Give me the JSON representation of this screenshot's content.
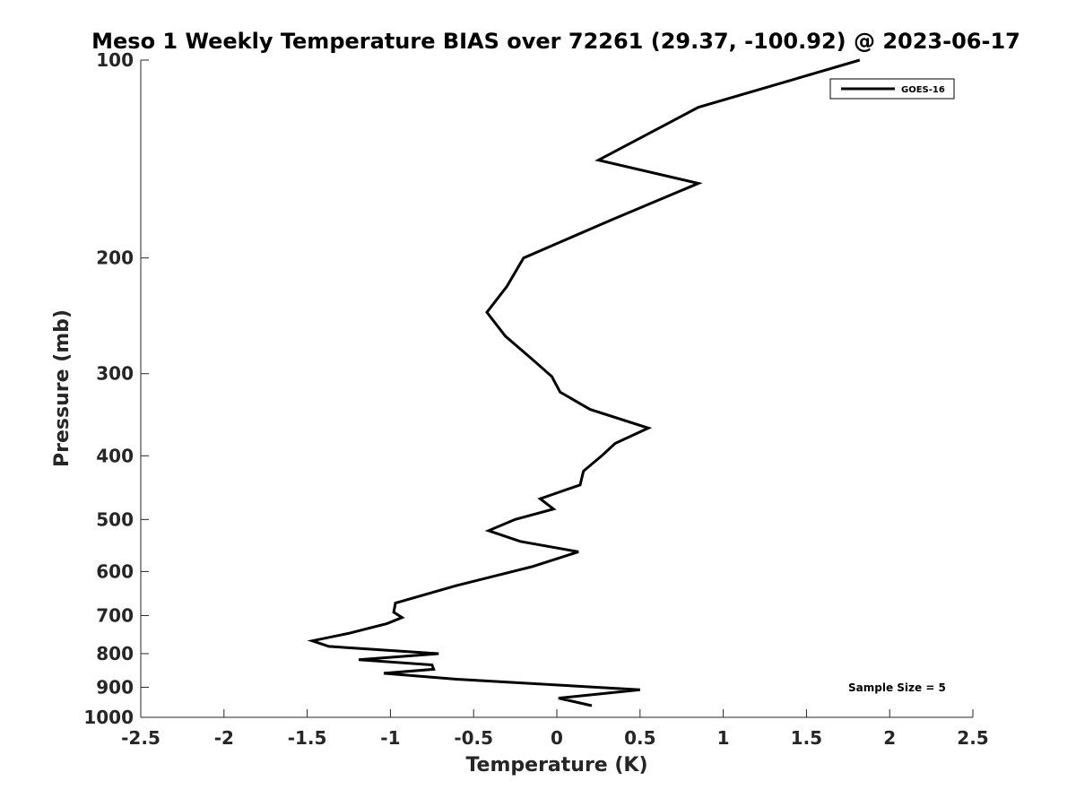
{
  "chart_data": {
    "type": "line",
    "title": "Meso 1 Weekly Temperature BIAS over 72261 (29.37, -100.92) @ 2023-06-17",
    "xlabel": "Temperature (K)",
    "ylabel": "Pressure (mb)",
    "xlim": [
      -2.5,
      2.5
    ],
    "ylim": [
      100,
      1000
    ],
    "yscale": "log",
    "yreverse": false,
    "xticks": [
      -2.5,
      -2,
      -1.5,
      -1,
      -0.5,
      0,
      0.5,
      1,
      1.5,
      2,
      2.5
    ],
    "xtick_labels": [
      "-2.5",
      "-2",
      "-1.5",
      "-1",
      "-0.5",
      "0",
      "0.5",
      "1",
      "1.5",
      "2",
      "2.5"
    ],
    "yticks": [
      100,
      200,
      300,
      400,
      500,
      600,
      700,
      800,
      900,
      1000
    ],
    "ytick_labels": [
      "100",
      "200",
      "300",
      "400",
      "500",
      "600",
      "700",
      "800",
      "900",
      "1000"
    ],
    "grid": false,
    "legend_position": "top-right",
    "annotation": "Sample Size = 5",
    "series": [
      {
        "name": "GOES-16",
        "color": "#000000",
        "points": [
          {
            "x": 1.82,
            "p": 100
          },
          {
            "x": 0.85,
            "p": 118
          },
          {
            "x": 0.25,
            "p": 142
          },
          {
            "x": 0.85,
            "p": 154
          },
          {
            "x": 0.33,
            "p": 175
          },
          {
            "x": -0.2,
            "p": 200
          },
          {
            "x": -0.3,
            "p": 221
          },
          {
            "x": -0.42,
            "p": 242
          },
          {
            "x": -0.31,
            "p": 263
          },
          {
            "x": -0.15,
            "p": 285
          },
          {
            "x": -0.03,
            "p": 303
          },
          {
            "x": 0.02,
            "p": 320
          },
          {
            "x": 0.2,
            "p": 340
          },
          {
            "x": 0.55,
            "p": 363
          },
          {
            "x": 0.35,
            "p": 383
          },
          {
            "x": 0.27,
            "p": 400
          },
          {
            "x": 0.16,
            "p": 422
          },
          {
            "x": 0.14,
            "p": 443
          },
          {
            "x": -0.1,
            "p": 465
          },
          {
            "x": -0.02,
            "p": 482
          },
          {
            "x": -0.25,
            "p": 500
          },
          {
            "x": -0.41,
            "p": 520
          },
          {
            "x": -0.22,
            "p": 540
          },
          {
            "x": 0.13,
            "p": 560
          },
          {
            "x": -0.15,
            "p": 590
          },
          {
            "x": -0.6,
            "p": 630
          },
          {
            "x": -0.97,
            "p": 670
          },
          {
            "x": -0.98,
            "p": 692
          },
          {
            "x": -0.93,
            "p": 705
          },
          {
            "x": -1.02,
            "p": 720
          },
          {
            "x": -1.25,
            "p": 745
          },
          {
            "x": -1.47,
            "p": 765
          },
          {
            "x": -1.37,
            "p": 780
          },
          {
            "x": -0.71,
            "p": 800
          },
          {
            "x": -1.19,
            "p": 817
          },
          {
            "x": -0.75,
            "p": 832
          },
          {
            "x": -0.74,
            "p": 845
          },
          {
            "x": -1.04,
            "p": 857
          },
          {
            "x": -0.6,
            "p": 875
          },
          {
            "x": 0.5,
            "p": 908
          },
          {
            "x": 0.01,
            "p": 935
          },
          {
            "x": 0.21,
            "p": 960
          }
        ]
      }
    ]
  }
}
